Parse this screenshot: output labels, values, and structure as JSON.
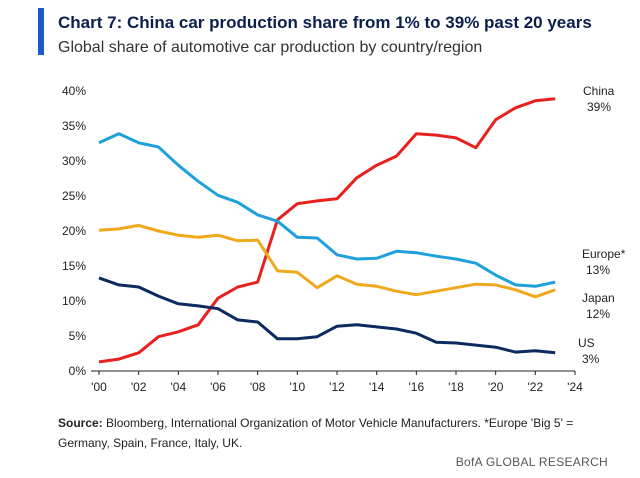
{
  "chart_data": {
    "type": "line",
    "title": "Chart 7: China car production share from 1% to 39% past 20 years",
    "subtitle": "Global share of automotive car production by country/region",
    "x": [
      2000,
      2001,
      2002,
      2003,
      2004,
      2005,
      2006,
      2007,
      2008,
      2009,
      2010,
      2011,
      2012,
      2013,
      2014,
      2015,
      2016,
      2017,
      2018,
      2019,
      2020,
      2021,
      2022,
      2023
    ],
    "series": [
      {
        "name": "China",
        "end_label": "39%",
        "color": "#e8211f",
        "values": [
          1.3,
          1.7,
          2.6,
          4.9,
          5.6,
          6.6,
          10.4,
          12,
          12.7,
          21.6,
          23.9,
          24.3,
          24.6,
          27.6,
          29.4,
          30.7,
          33.9,
          33.7,
          33.3,
          31.9,
          35.9,
          37.6,
          38.6,
          38.9
        ]
      },
      {
        "name": "Europe*",
        "end_label": "13%",
        "color": "#1ea1da",
        "values": [
          32.6,
          33.9,
          32.6,
          32,
          29.4,
          27.1,
          25.1,
          24.1,
          22.3,
          21.4,
          19.1,
          19,
          16.6,
          16,
          16.1,
          17.1,
          16.9,
          16.4,
          16,
          15.4,
          13.7,
          12.3,
          12.1,
          12.7
        ]
      },
      {
        "name": "Japan",
        "end_label": "12%",
        "color": "#f0a81c",
        "values": [
          20.1,
          20.3,
          20.8,
          20,
          19.4,
          19.1,
          19.4,
          18.6,
          18.7,
          14.3,
          14.1,
          11.9,
          13.6,
          12.4,
          12.1,
          11.4,
          10.9,
          11.4,
          11.9,
          12.4,
          12.3,
          11.6,
          10.6,
          11.6
        ]
      },
      {
        "name": "US",
        "end_label": "3%",
        "color": "#0c2a5f",
        "values": [
          13.3,
          12.3,
          12,
          10.7,
          9.6,
          9.3,
          8.9,
          7.3,
          7,
          4.6,
          4.6,
          4.9,
          6.4,
          6.6,
          6.3,
          6,
          5.4,
          4.1,
          4,
          3.7,
          3.4,
          2.7,
          2.9,
          2.6
        ]
      }
    ],
    "xlim": [
      2000,
      2024
    ],
    "xticks": [
      {
        "value": 2000,
        "label": "'00"
      },
      {
        "value": 2002,
        "label": "'02"
      },
      {
        "value": 2004,
        "label": "'04"
      },
      {
        "value": 2006,
        "label": "'06"
      },
      {
        "value": 2008,
        "label": "'08"
      },
      {
        "value": 2010,
        "label": "'10"
      },
      {
        "value": 2012,
        "label": "'12"
      },
      {
        "value": 2014,
        "label": "'14"
      },
      {
        "value": 2016,
        "label": "'16"
      },
      {
        "value": 2018,
        "label": "'18"
      },
      {
        "value": 2020,
        "label": "'20"
      },
      {
        "value": 2022,
        "label": "'22"
      },
      {
        "value": 2024,
        "label": "'24"
      }
    ],
    "ylim": [
      0,
      40
    ],
    "yticks": [
      {
        "value": 0,
        "label": "0%"
      },
      {
        "value": 5,
        "label": "5%"
      },
      {
        "value": 10,
        "label": "10%"
      },
      {
        "value": 15,
        "label": "15%"
      },
      {
        "value": 20,
        "label": "20%"
      },
      {
        "value": 25,
        "label": "25%"
      },
      {
        "value": 30,
        "label": "30%"
      },
      {
        "value": 35,
        "label": "35%"
      },
      {
        "value": 40,
        "label": "40%"
      }
    ],
    "grid": false,
    "source_label": "Source:",
    "source_text": "Bloomberg, International Organization of Motor Vehicle Manufacturers. *Europe 'Big 5' = Germany, Spain, France, Italy, UK.",
    "brand": "BofA GLOBAL RESEARCH"
  }
}
